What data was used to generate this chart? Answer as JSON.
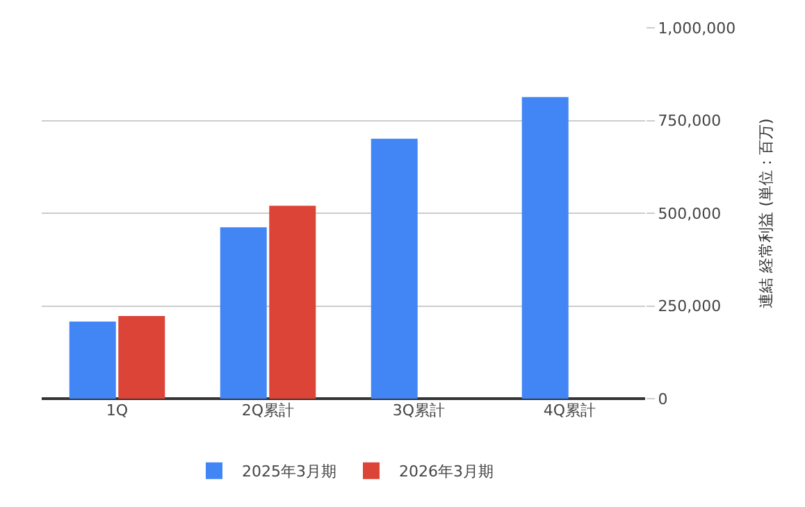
{
  "chart_data": {
    "type": "bar",
    "ylabel": "連結 経常利益 (単位：百万)",
    "categories": [
      "1Q",
      "2Q累計",
      "3Q累計",
      "4Q累計"
    ],
    "series": [
      {
        "name": "2025年3月期",
        "color": "#4285f4",
        "values": [
          208000,
          462000,
          701000,
          813000
        ]
      },
      {
        "name": "2026年3月期",
        "color": "#db4437",
        "values": [
          223000,
          520000,
          null,
          null
        ]
      }
    ],
    "ylim": [
      0,
      1000000
    ],
    "yticks": [
      {
        "value": 0,
        "label": "0"
      },
      {
        "value": 250000,
        "label": "250,000"
      },
      {
        "value": 500000,
        "label": "500,000"
      },
      {
        "value": 750000,
        "label": "750,000"
      },
      {
        "value": 1000000,
        "label": "1,000,000"
      }
    ],
    "grid": "y",
    "legend": "bottom"
  }
}
